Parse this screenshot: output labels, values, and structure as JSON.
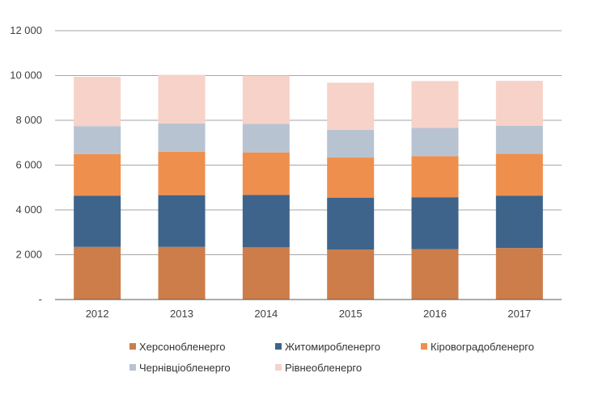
{
  "chart_data": {
    "type": "bar",
    "stacked": true,
    "categories": [
      "2012",
      "2013",
      "2014",
      "2015",
      "2016",
      "2017"
    ],
    "series": [
      {
        "name": "Херсонобленерго",
        "color": "#cd7d4a",
        "values": [
          2350,
          2350,
          2330,
          2230,
          2250,
          2300
        ]
      },
      {
        "name": "Житомиробленерго",
        "color": "#3e648b",
        "values": [
          2280,
          2310,
          2340,
          2310,
          2310,
          2330
        ]
      },
      {
        "name": "Кіровоградобленерго",
        "color": "#ef8f4e",
        "values": [
          1860,
          1940,
          1900,
          1800,
          1840,
          1880
        ]
      },
      {
        "name": "Чернівціобленерго",
        "color": "#b8c3d2",
        "values": [
          1250,
          1260,
          1270,
          1230,
          1260,
          1250
        ]
      },
      {
        "name": "Рівнеобленерго",
        "color": "#f7d2c8",
        "values": [
          2200,
          2170,
          2160,
          2110,
          2090,
          2000
        ]
      }
    ],
    "y_ticks": [
      "-",
      "2 000",
      "4 000",
      "6 000",
      "8 000",
      "10 000",
      "12 000"
    ],
    "ylim": [
      0,
      12000
    ],
    "grid": true,
    "legend_position": "bottom"
  }
}
